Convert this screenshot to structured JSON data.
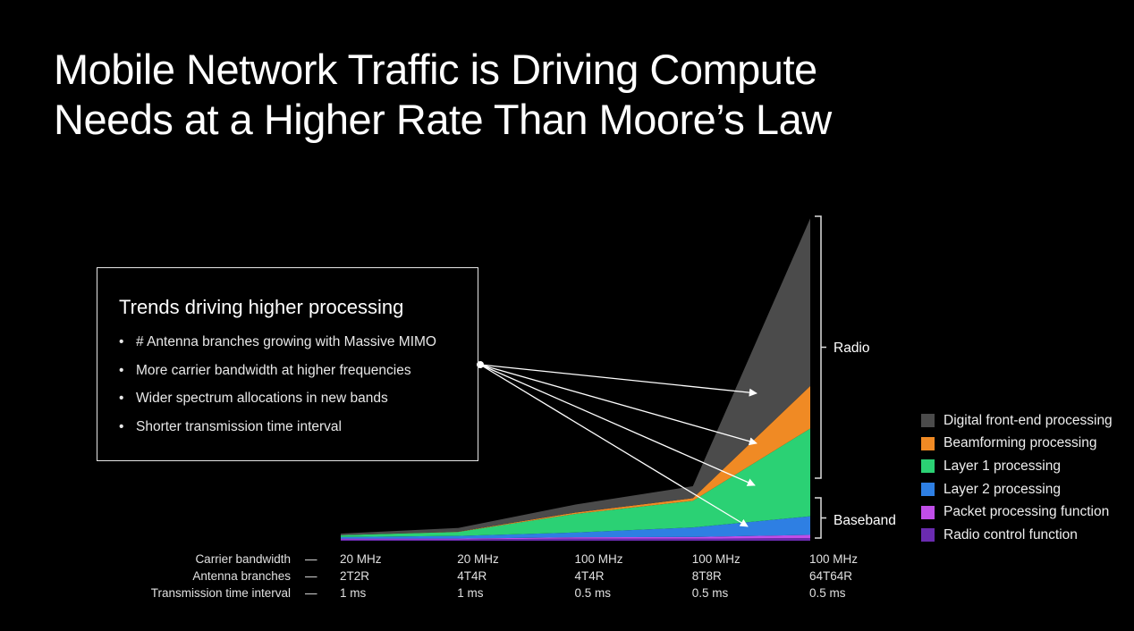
{
  "title": {
    "line1": "Mobile Network Traffic is Driving Compute",
    "line2": "Needs at a Higher Rate Than Moore’s Law"
  },
  "trends": {
    "heading": "Trends driving higher processing",
    "bullet": "•",
    "items": [
      "# Antenna branches growing with Massive MIMO",
      "More carrier bandwidth at higher frequencies",
      "Wider spectrum allocations in new bands",
      "Shorter transmission time interval"
    ]
  },
  "brackets": {
    "radio": "Radio",
    "baseband": "Baseband"
  },
  "chart_data": {
    "type": "area",
    "stacked": true,
    "x_rows": [
      {
        "label": "Carrier bandwidth",
        "values": [
          "20 MHz",
          "20 MHz",
          "100 MHz",
          "100 MHz",
          "100 MHz"
        ]
      },
      {
        "label": "Antenna branches",
        "values": [
          "2T2R",
          "4T4R",
          "4T4R",
          "8T8R",
          "64T64R"
        ]
      },
      {
        "label": "Transmission time interval",
        "values": [
          "1 ms",
          "1 ms",
          "0.5 ms",
          "0.5 ms",
          "0.5 ms"
        ]
      }
    ],
    "row_dash": "—",
    "x": [
      0,
      1,
      2,
      3,
      4
    ],
    "series": [
      {
        "name": "Radio control function",
        "color": "#6a2bb0",
        "values": [
          0.5,
          0.5,
          0.8,
          0.8,
          1.0
        ]
      },
      {
        "name": "Packet processing function",
        "color": "#c04ee8",
        "values": [
          0.3,
          0.3,
          0.5,
          0.6,
          1.2
        ]
      },
      {
        "name": "Layer 2 processing",
        "color": "#2e7fe3",
        "values": [
          0.6,
          1.0,
          1.8,
          3.6,
          7.0
        ]
      },
      {
        "name": "Layer 1 processing",
        "color": "#2bd174",
        "values": [
          0.7,
          1.5,
          7.0,
          10.0,
          33.0
        ]
      },
      {
        "name": "Beamforming processing",
        "color": "#f08a24",
        "values": [
          0,
          0.1,
          0.5,
          1.0,
          16.0
        ]
      },
      {
        "name": "Digital front-end processing",
        "color": "#4b4b4b",
        "values": [
          0.6,
          1.4,
          3.0,
          4.5,
          63.0
        ]
      }
    ],
    "ylim": [
      0,
      122
    ],
    "legend_order": [
      "Digital front-end processing",
      "Beamforming processing",
      "Layer 1 processing",
      "Layer 2 processing",
      "Packet processing function",
      "Radio control function"
    ],
    "legend_position": "right",
    "grid": false
  }
}
